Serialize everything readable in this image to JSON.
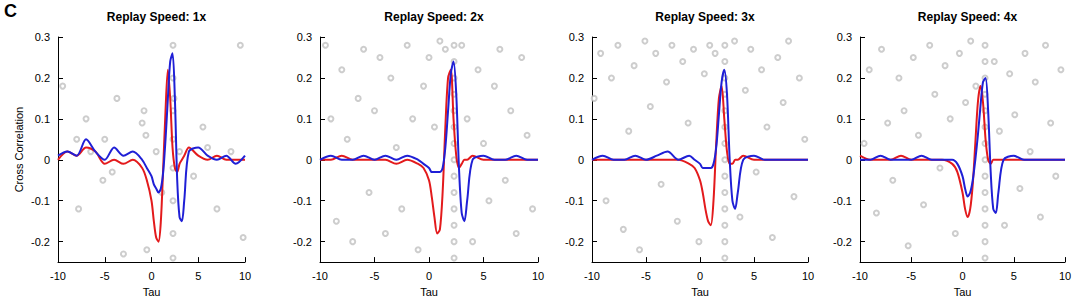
{
  "chart_data": [
    {
      "type": "line",
      "title": "Replay Speed: 1x",
      "x_label": "Tau",
      "y_label": "Cross Correlation",
      "annotations": [
        "C"
      ],
      "xlim": [
        -10,
        10
      ],
      "xticks": [
        -10,
        -5,
        0,
        5,
        10
      ],
      "ylim": [
        -0.25,
        0.3
      ],
      "yticks": [
        -0.2,
        -0.1,
        0,
        0.1,
        0.2,
        0.3
      ],
      "x": [
        -10,
        -9,
        -8,
        -7,
        -6,
        -5,
        -4,
        -3,
        -2,
        -1,
        -0.5,
        0,
        0.25,
        0.5,
        0.75,
        1,
        1.25,
        1.5,
        1.75,
        2,
        2.25,
        2.5,
        2.75,
        3,
        3.25,
        3.5,
        4,
        5,
        6,
        7,
        8,
        9,
        10
      ],
      "series": [
        {
          "type": "scatter",
          "color": "#c0c0c0",
          "marker": "circle_open",
          "x": [
            -9.5,
            -8,
            -7.8,
            -7,
            -6.5,
            -5.2,
            -5,
            -4.2,
            -3.7,
            -3,
            -1,
            -0.8,
            -0.6,
            -0.5,
            0.5,
            1.1,
            2.3,
            2.3,
            2.3,
            2.3,
            2.3,
            2.3,
            2.3,
            2.3,
            2.4,
            3,
            4.5,
            5.5,
            6,
            7,
            8.5,
            9.5,
            9.8
          ],
          "values": [
            0.18,
            0.05,
            -0.12,
            0.1,
            0.02,
            -0.05,
            0.05,
            -0.03,
            0.15,
            -0.23,
            0.09,
            0.12,
            0.06,
            -0.22,
            0.02,
            -0.08,
            0.28,
            0.2,
            0.12,
            0.05,
            -0.02,
            -0.1,
            -0.18,
            -0.24,
            0.15,
            0.02,
            -0.04,
            0.08,
            0.03,
            -0.12,
            0.02,
            0.28,
            -0.19
          ]
        },
        {
          "type": "line",
          "color": "#e31a1c",
          "line_style": "solid",
          "values": [
            0,
            0.02,
            0.01,
            0.03,
            0.02,
            -0.01,
            0,
            -0.01,
            0,
            -0.02,
            -0.05,
            -0.1,
            -0.15,
            -0.19,
            -0.2,
            -0.15,
            -0.02,
            0.12,
            0.22,
            0.15,
            0.03,
            -0.02,
            -0.03,
            -0.01,
            0,
            0.01,
            0.03,
            0.01,
            0,
            0.01,
            0,
            0,
            0
          ]
        },
        {
          "type": "line",
          "color": "#1f1fd6",
          "line_style": "solid",
          "values": [
            0.01,
            0.02,
            0.01,
            0.05,
            0.02,
            0,
            0.03,
            0.01,
            0.02,
            0,
            -0.02,
            -0.04,
            -0.06,
            -0.07,
            -0.08,
            -0.07,
            -0.03,
            0.05,
            0.15,
            0.24,
            0.26,
            0.15,
            -0.05,
            -0.14,
            -0.15,
            -0.1,
            0.02,
            0.03,
            0.01,
            0,
            0.01,
            -0.01,
            0.01
          ]
        }
      ]
    },
    {
      "type": "line",
      "title": "Replay Speed: 2x",
      "x_label": "Tau",
      "xlim": [
        -10,
        10
      ],
      "xticks": [
        -10,
        -5,
        0,
        5,
        10
      ],
      "ylim": [
        -0.25,
        0.3
      ],
      "yticks": [
        -0.2,
        -0.1,
        0,
        0.1,
        0.2,
        0.3
      ],
      "x": [
        -10,
        -9,
        -8,
        -7,
        -6,
        -5,
        -4,
        -3,
        -2,
        -1,
        -0.5,
        0,
        0.25,
        0.5,
        0.75,
        1,
        1.25,
        1.5,
        1.75,
        2,
        2.25,
        2.5,
        2.75,
        3,
        3.25,
        3.5,
        4,
        5,
        6,
        7,
        8,
        9,
        10
      ],
      "series": [
        {
          "type": "scatter",
          "color": "#c0c0c0",
          "marker": "circle_open",
          "x": [
            -9.5,
            -9,
            -8.5,
            -8,
            -7.5,
            -7,
            -6.5,
            -6,
            -5.5,
            -5,
            -4.5,
            -4,
            -3.5,
            -3,
            -2.5,
            -2,
            -1.5,
            -1,
            -0.5,
            0,
            0.5,
            1,
            1.5,
            3,
            3.5,
            4,
            4.5,
            5,
            5.5,
            6,
            6.5,
            7,
            7.5,
            8,
            8.5,
            9,
            9.5,
            2.3,
            2.3,
            2.3,
            2.3,
            2.3,
            2.3,
            2.3,
            2.3,
            2.3,
            2.3,
            2.3,
            2.3,
            2.3,
            2.3
          ],
          "values": [
            0.28,
            0.1,
            -0.15,
            0.22,
            0.05,
            -0.2,
            0.15,
            0.27,
            -0.08,
            0.12,
            0.25,
            -0.18,
            0.2,
            0.03,
            -0.12,
            0.28,
            0.1,
            -0.22,
            0.18,
            0.25,
            0.08,
            0.29,
            0.27,
            0.28,
            0.1,
            -0.2,
            0.22,
            0.04,
            -0.1,
            0.18,
            0.27,
            -0.05,
            0.12,
            -0.18,
            0.25,
            0.06,
            -0.12,
            0.28,
            0.24,
            0.2,
            0.16,
            0.12,
            0.08,
            0.04,
            0,
            -0.04,
            -0.08,
            -0.12,
            -0.16,
            -0.2,
            -0.24
          ]
        },
        {
          "type": "line",
          "color": "#e31a1c",
          "line_style": "solid",
          "values": [
            0,
            0,
            0.01,
            0,
            0,
            0,
            0,
            -0.01,
            0,
            -0.01,
            -0.02,
            -0.05,
            -0.09,
            -0.14,
            -0.18,
            -0.17,
            -0.08,
            0.08,
            0.2,
            0.22,
            0.1,
            0.01,
            -0.02,
            -0.01,
            0,
            0,
            0.01,
            0,
            0,
            0,
            0,
            0,
            0
          ]
        },
        {
          "type": "line",
          "color": "#1f1fd6",
          "line_style": "solid",
          "values": [
            0,
            0.01,
            0,
            0,
            0.01,
            0,
            0.01,
            0,
            0.01,
            0,
            -0.01,
            -0.02,
            -0.03,
            -0.03,
            -0.03,
            -0.03,
            -0.02,
            0.03,
            0.12,
            0.21,
            0.24,
            0.16,
            -0.02,
            -0.13,
            -0.15,
            -0.1,
            0,
            0.01,
            0,
            0,
            0.01,
            0,
            0
          ]
        }
      ]
    },
    {
      "type": "line",
      "title": "Replay Speed: 3x",
      "x_label": "Tau",
      "xlim": [
        -10,
        10
      ],
      "xticks": [
        -10,
        -5,
        0,
        5,
        10
      ],
      "ylim": [
        -0.25,
        0.3
      ],
      "yticks": [
        -0.2,
        -0.1,
        0,
        0.1,
        0.2,
        0.3
      ],
      "x": [
        -10,
        -9,
        -8,
        -7,
        -6,
        -5,
        -4,
        -3,
        -2,
        -1,
        -0.5,
        0,
        0.25,
        0.5,
        0.75,
        1,
        1.25,
        1.5,
        1.75,
        2,
        2.25,
        2.5,
        2.75,
        3,
        3.25,
        3.5,
        4,
        5,
        6,
        7,
        8,
        9,
        10
      ],
      "series": [
        {
          "type": "scatter",
          "color": "#c0c0c0",
          "marker": "circle_open",
          "x": [
            -9.8,
            -9.2,
            -8.7,
            -8.2,
            -7.6,
            -7.1,
            -6.6,
            -6.1,
            -5.6,
            -5.1,
            -4.6,
            -4.1,
            -3.6,
            -3.1,
            -2.6,
            -2.1,
            -1.6,
            -1.1,
            -0.6,
            -0.1,
            0.4,
            0.9,
            1.4,
            3.2,
            3.7,
            4.2,
            4.7,
            5.2,
            5.7,
            6.2,
            6.7,
            7.2,
            7.7,
            8.2,
            8.7,
            9.2,
            9.7,
            2.3,
            2.3,
            2.3,
            2.3,
            2.3,
            2.3,
            2.3,
            2.3,
            2.3,
            2.3,
            2.3,
            2.3,
            2.3,
            2.3
          ],
          "values": [
            0.15,
            0.26,
            -0.1,
            0.2,
            0.28,
            -0.17,
            0.07,
            0.23,
            -0.22,
            0.29,
            0.13,
            0.26,
            -0.06,
            0.19,
            0.28,
            -0.15,
            0.24,
            0.09,
            0.27,
            -0.2,
            0.21,
            0.28,
            0.26,
            0.29,
            -0.14,
            0.17,
            0.27,
            -0.03,
            0.22,
            0.08,
            -0.19,
            0.25,
            0.14,
            0.29,
            -0.09,
            0.2,
            0.05,
            0.28,
            0.24,
            0.2,
            0.16,
            0.12,
            0.08,
            0.04,
            0,
            -0.04,
            -0.08,
            -0.12,
            -0.16,
            -0.2,
            -0.24
          ]
        },
        {
          "type": "line",
          "color": "#e31a1c",
          "line_style": "solid",
          "values": [
            0,
            0,
            0,
            0,
            0,
            0,
            0,
            0,
            0,
            -0.01,
            -0.02,
            -0.05,
            -0.08,
            -0.12,
            -0.15,
            -0.16,
            -0.1,
            0.04,
            0.15,
            0.18,
            0.1,
            0.02,
            -0.01,
            -0.01,
            0,
            0,
            0.01,
            0,
            0,
            0,
            0,
            0,
            0
          ]
        },
        {
          "type": "line",
          "color": "#1f1fd6",
          "line_style": "solid",
          "values": [
            0,
            0.01,
            0,
            0,
            0.01,
            0,
            0.01,
            0.02,
            0,
            0.01,
            0,
            -0.01,
            -0.02,
            -0.02,
            -0.02,
            -0.02,
            -0.01,
            0.03,
            0.11,
            0.19,
            0.22,
            0.16,
            0,
            -0.1,
            -0.12,
            -0.08,
            0,
            0.01,
            0,
            0,
            0,
            0,
            0
          ]
        }
      ]
    },
    {
      "type": "line",
      "title": "Replay Speed: 4x",
      "x_label": "Tau",
      "xlim": [
        -10,
        10
      ],
      "xticks": [
        -10,
        -5,
        0,
        5,
        10
      ],
      "ylim": [
        -0.25,
        0.3
      ],
      "yticks": [
        -0.2,
        -0.1,
        0,
        0.1,
        0.2,
        0.3
      ],
      "x": [
        -10,
        -9,
        -8,
        -7,
        -6,
        -5,
        -4,
        -3,
        -2,
        -1,
        -0.5,
        0,
        0.25,
        0.5,
        0.75,
        1,
        1.25,
        1.5,
        1.75,
        2,
        2.25,
        2.5,
        2.75,
        3,
        3.25,
        3.5,
        4,
        5,
        6,
        7,
        8,
        9,
        10
      ],
      "series": [
        {
          "type": "scatter",
          "color": "#c0c0c0",
          "marker": "circle_open",
          "x": [
            -9.6,
            -9.1,
            -8.4,
            -7.9,
            -7.3,
            -6.8,
            -6.2,
            -5.7,
            -5.3,
            -4.8,
            -4.3,
            -3.8,
            -3.2,
            -2.7,
            -2.2,
            -1.7,
            -1.2,
            -0.7,
            -0.3,
            0.3,
            0.8,
            1.3,
            3.1,
            3.6,
            4.1,
            4.6,
            5.1,
            5.6,
            6.1,
            6.6,
            7.1,
            7.6,
            8.1,
            8.6,
            9.1,
            9.6,
            2.2,
            2.2,
            2.2,
            2.2,
            2.2,
            2.2,
            2.2,
            2.2,
            2.2,
            2.2,
            2.2,
            2.2,
            2.2,
            2.2
          ],
          "values": [
            0.04,
            0.22,
            -0.13,
            0.27,
            0.09,
            -0.05,
            0.2,
            0.12,
            -0.21,
            0.25,
            0.06,
            -0.11,
            0.28,
            0.16,
            -0.02,
            0.23,
            0.1,
            -0.18,
            0.26,
            0.14,
            0.29,
            0.18,
            0.24,
            0.07,
            -0.16,
            0.21,
            0.11,
            -0.07,
            0.26,
            0.02,
            0.19,
            -0.14,
            0.28,
            0.09,
            -0.04,
            0.22,
            0.28,
            0.24,
            0.2,
            0.16,
            0.12,
            0.08,
            0.04,
            0,
            -0.04,
            -0.08,
            -0.12,
            -0.16,
            -0.2,
            -0.24
          ]
        },
        {
          "type": "line",
          "color": "#e31a1c",
          "line_style": "solid",
          "values": [
            0.01,
            0,
            0,
            0,
            0.01,
            0,
            0,
            0,
            0,
            -0.01,
            -0.03,
            -0.08,
            -0.12,
            -0.14,
            -0.12,
            -0.06,
            0.04,
            0.14,
            0.18,
            0.14,
            0.05,
            0,
            -0.01,
            0,
            0,
            0,
            0,
            0,
            0,
            0,
            0,
            0,
            0
          ]
        },
        {
          "type": "line",
          "color": "#1f1fd6",
          "line_style": "solid",
          "values": [
            0,
            0,
            0.01,
            0,
            0,
            0,
            0.01,
            0,
            0,
            0,
            -0.01,
            -0.04,
            -0.07,
            -0.09,
            -0.08,
            -0.05,
            0,
            0.06,
            0.13,
            0.19,
            0.2,
            0.12,
            -0.03,
            -0.12,
            -0.13,
            -0.08,
            0,
            0.01,
            0,
            0,
            0,
            0,
            0
          ]
        }
      ]
    }
  ]
}
